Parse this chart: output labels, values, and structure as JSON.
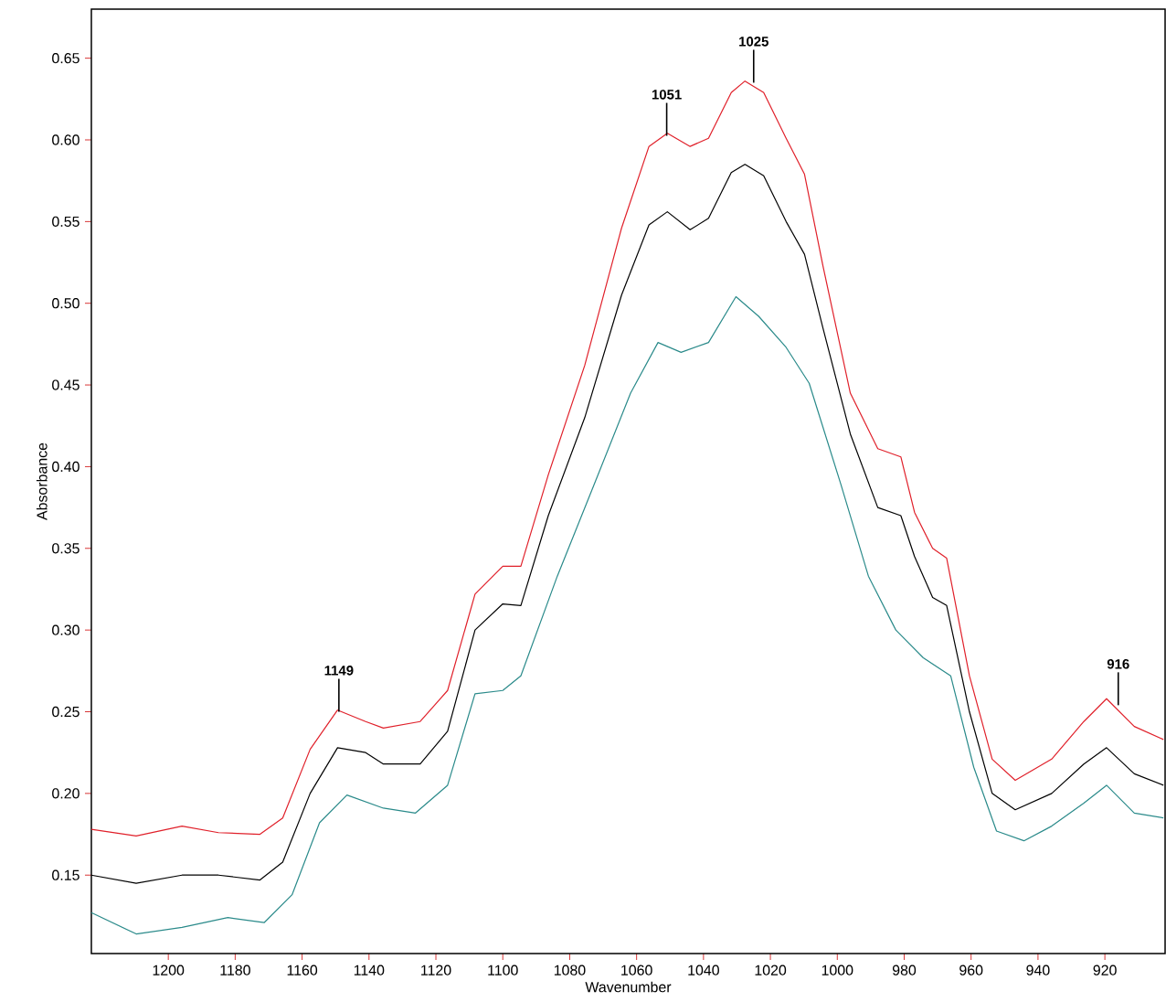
{
  "chart_data": {
    "type": "line",
    "xlabel": "Wavenumber",
    "ylabel": "Absorbance",
    "xlim": [
      1223,
      902
    ],
    "ylim": [
      0.102,
      0.68
    ],
    "xticks": [
      1200,
      1180,
      1160,
      1140,
      1120,
      1100,
      1080,
      1060,
      1040,
      1020,
      1000,
      980,
      960,
      940,
      920
    ],
    "yticks": [
      {
        "value": 0.15,
        "label": "0.15"
      },
      {
        "value": 0.2,
        "label": "0.20"
      },
      {
        "value": 0.25,
        "label": "0.25"
      },
      {
        "value": 0.3,
        "label": "0.30"
      },
      {
        "value": 0.35,
        "label": "0.35"
      },
      {
        "value": 0.4,
        "label": "0.40"
      },
      {
        "value": 0.45,
        "label": "0.45"
      },
      {
        "value": 0.5,
        "label": "0.50"
      },
      {
        "value": 0.55,
        "label": "0.55"
      },
      {
        "value": 0.6,
        "label": "0.60"
      },
      {
        "value": 0.65,
        "label": "0.65"
      }
    ],
    "grid": false,
    "marker": "none",
    "line_style": "solid",
    "series": [
      {
        "color": "#e0202a",
        "x": [
          1223,
          1209.6,
          1195.9,
          1185,
          1172.6,
          1165.8,
          1157.6,
          1149.4,
          1141,
          1135.7,
          1124.7,
          1116.5,
          1108.3,
          1100,
          1094.6,
          1086.4,
          1075.5,
          1064.5,
          1056.3,
          1050.8,
          1044,
          1038.5,
          1031.7,
          1027.6,
          1022,
          1015.3,
          1009.8,
          1004.3,
          996.1,
          987.9,
          981,
          976.9,
          971.5,
          967.3,
          960.5,
          953.7,
          946.8,
          935.9,
          926.3,
          919.5,
          911.2,
          902.5
        ],
        "values": [
          0.178,
          0.174,
          0.18,
          0.176,
          0.175,
          0.185,
          0.227,
          0.251,
          0.244,
          0.24,
          0.244,
          0.263,
          0.322,
          0.339,
          0.339,
          0.395,
          0.462,
          0.546,
          0.596,
          0.604,
          0.596,
          0.601,
          0.629,
          0.636,
          0.629,
          0.601,
          0.579,
          0.523,
          0.445,
          0.411,
          0.406,
          0.372,
          0.35,
          0.344,
          0.272,
          0.221,
          0.208,
          0.221,
          0.244,
          0.258,
          0.241,
          0.233
        ]
      },
      {
        "color": "#000000",
        "x": [
          1223,
          1209.6,
          1195.9,
          1185,
          1172.6,
          1165.8,
          1157.6,
          1149.4,
          1141,
          1135.7,
          1124.7,
          1116.5,
          1108.3,
          1100,
          1094.6,
          1086.4,
          1075.5,
          1064.5,
          1056.3,
          1050.8,
          1044,
          1038.5,
          1031.7,
          1027.6,
          1022,
          1015.3,
          1009.8,
          1004.3,
          996.1,
          987.9,
          981,
          976.9,
          971.5,
          967.3,
          960.5,
          953.7,
          946.8,
          935.9,
          926.3,
          919.5,
          911.2,
          902.5
        ],
        "values": [
          0.15,
          0.145,
          0.15,
          0.15,
          0.147,
          0.158,
          0.2,
          0.228,
          0.225,
          0.218,
          0.218,
          0.238,
          0.3,
          0.316,
          0.315,
          0.37,
          0.43,
          0.505,
          0.548,
          0.556,
          0.545,
          0.552,
          0.58,
          0.585,
          0.578,
          0.55,
          0.53,
          0.485,
          0.42,
          0.375,
          0.37,
          0.345,
          0.32,
          0.315,
          0.25,
          0.2,
          0.19,
          0.2,
          0.218,
          0.228,
          0.212,
          0.205
        ]
      },
      {
        "color": "#2a8a8a",
        "x": [
          1223,
          1209.6,
          1195.9,
          1182.2,
          1171.3,
          1163,
          1154.8,
          1146.6,
          1135.7,
          1126.1,
          1116.5,
          1108.3,
          1100,
          1094.6,
          1083.7,
          1072.7,
          1061.8,
          1053.6,
          1046.7,
          1038.5,
          1030.3,
          1023.5,
          1015.3,
          1008.4,
          998.9,
          990.7,
          982.5,
          974.3,
          966.1,
          959.2,
          952.4,
          944.2,
          935.9,
          926.3,
          919.5,
          911.2,
          902.5
        ],
        "values": [
          0.127,
          0.114,
          0.118,
          0.124,
          0.121,
          0.138,
          0.182,
          0.199,
          0.191,
          0.188,
          0.205,
          0.261,
          0.263,
          0.272,
          0.333,
          0.389,
          0.445,
          0.476,
          0.47,
          0.476,
          0.504,
          0.492,
          0.473,
          0.451,
          0.389,
          0.333,
          0.3,
          0.283,
          0.272,
          0.216,
          0.177,
          0.171,
          0.18,
          0.194,
          0.205,
          0.188,
          0.185
        ]
      }
    ],
    "annotations": [
      {
        "text": "1149",
        "x": 1149,
        "y": 0.25
      },
      {
        "text": "1051",
        "x": 1051,
        "y": 0.6025
      },
      {
        "text": "1025",
        "x": 1025,
        "y": 0.635
      },
      {
        "text": "916",
        "x": 916,
        "y": 0.254
      }
    ]
  }
}
